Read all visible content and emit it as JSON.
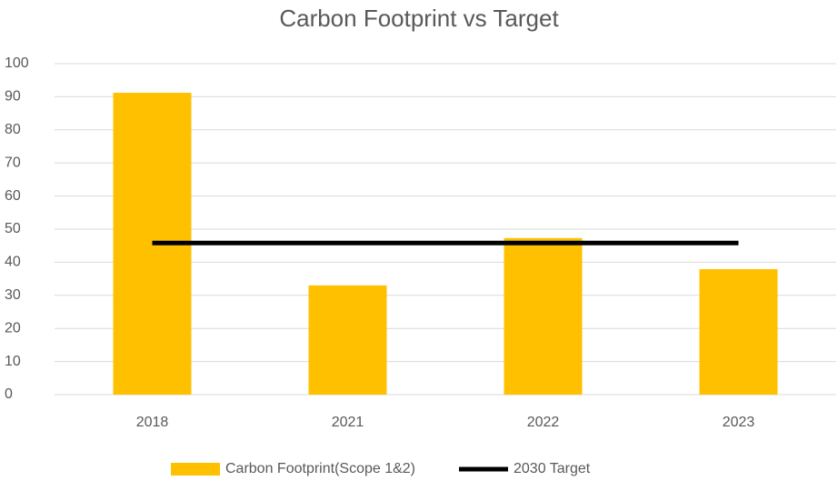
{
  "chart_data": {
    "type": "bar",
    "title": "Carbon Footprint vs Target",
    "categories": [
      "2018",
      "2021",
      "2022",
      "2023"
    ],
    "series": [
      {
        "name": "Carbon Footprint(Scope 1&2)",
        "type": "bar",
        "color": "#ffc000",
        "values": [
          91.2,
          33.0,
          47.3,
          37.9
        ]
      },
      {
        "name": "2030 Target",
        "type": "line",
        "color": "#000000",
        "values": [
          45.8,
          45.8,
          45.8,
          45.8
        ]
      }
    ],
    "ylim": [
      0,
      100
    ],
    "yticks": [
      0,
      10,
      20,
      30,
      40,
      50,
      60,
      70,
      80,
      90,
      100
    ],
    "grid": true,
    "legend": "bottom"
  }
}
